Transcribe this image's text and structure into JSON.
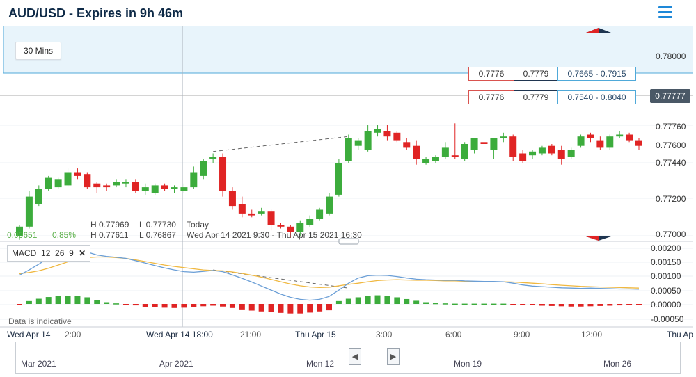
{
  "header": {
    "title": "AUD/USD - Expires in 9h 46m",
    "menu_icon": "hamburger-menu-icon"
  },
  "timeframe": "30 Mins",
  "quotes": [
    {
      "sell": "0.7776",
      "buy": "0.7779",
      "range": "0.7665 - 0.7915"
    },
    {
      "sell": "0.7776",
      "buy": "0.7779",
      "range": "0.7540 - 0.8040"
    }
  ],
  "last_price": "0.77777",
  "ohlc": {
    "today_h": "H 0.77969",
    "today_l": "L 0.77730",
    "today_label": "Today",
    "range_h": "H 0.77611",
    "range_l": "L 0.76867",
    "range_label": "Wed Apr 14 2021 9:30 - Thu Apr 15 2021 16:30",
    "change": "0.00651",
    "change_pct": "0.85%"
  },
  "macd": {
    "label": "MACD",
    "p1": "12",
    "p2": "26",
    "p3": "9"
  },
  "indicative": "Data is indicative",
  "navigator": {
    "labels": [
      "Mar 2021",
      "Apr 2021",
      "Mon 12",
      "Mon 19",
      "Mon 26"
    ]
  },
  "colors": {
    "up": "#3cac3c",
    "down": "#e02424",
    "macd_line": "#6a9ed6",
    "signal_line": "#f0b840",
    "accent": "#1e88d8"
  },
  "chart_data": {
    "type": "candlestick",
    "xlabels": [
      "Wed Apr 14",
      "2:00",
      "Wed Apr 14 18:00",
      "21:00",
      "Thu Apr 15",
      "3:00",
      "6:00",
      "9:00",
      "12:00",
      "Thu Ap"
    ],
    "price_axis": [
      "0.78000",
      "0.77760",
      "0.77600",
      "0.77440",
      "0.77200",
      "0.77000"
    ],
    "macd_axis": [
      "0.00200",
      "0.00150",
      "0.00100",
      "0.00050",
      "0.00000",
      "-0.00050"
    ],
    "ylim_price": [
      0.77,
      0.78
    ],
    "ylim_macd": [
      -0.0007,
      0.0021
    ],
    "candles": [
      [
        0.7701,
        0.7707,
        0.7699,
        0.7706
      ],
      [
        0.7706,
        0.7725,
        0.7705,
        0.7722
      ],
      [
        0.7718,
        0.7728,
        0.7717,
        0.7726
      ],
      [
        0.7726,
        0.7733,
        0.7725,
        0.7732
      ],
      [
        0.7727,
        0.7732,
        0.7726,
        0.7731
      ],
      [
        0.7728,
        0.7737,
        0.7727,
        0.7735
      ],
      [
        0.7735,
        0.7737,
        0.7731,
        0.7733
      ],
      [
        0.7734,
        0.7735,
        0.7726,
        0.7727
      ],
      [
        0.7729,
        0.773,
        0.7724,
        0.7727
      ],
      [
        0.7728,
        0.7729,
        0.7725,
        0.7727
      ],
      [
        0.7728,
        0.7731,
        0.7727,
        0.773
      ],
      [
        0.7729,
        0.7731,
        0.7727,
        0.773
      ],
      [
        0.773,
        0.7731,
        0.7724,
        0.7725
      ],
      [
        0.7725,
        0.7729,
        0.7723,
        0.7727
      ],
      [
        0.7724,
        0.7729,
        0.7723,
        0.7728
      ],
      [
        0.7728,
        0.7729,
        0.7725,
        0.7726
      ],
      [
        0.7726,
        0.7728,
        0.7724,
        0.7727
      ],
      [
        0.7725,
        0.7729,
        0.7724,
        0.7727
      ],
      [
        0.7727,
        0.7738,
        0.7726,
        0.7735
      ],
      [
        0.7733,
        0.7742,
        0.7731,
        0.7741
      ],
      [
        0.7742,
        0.7745,
        0.774,
        0.7743
      ],
      [
        0.7743,
        0.7745,
        0.7722,
        0.7725
      ],
      [
        0.7725,
        0.7727,
        0.7715,
        0.7717
      ],
      [
        0.7718,
        0.7722,
        0.7711,
        0.7713
      ],
      [
        0.7713,
        0.7715,
        0.7711,
        0.7712
      ],
      [
        0.7713,
        0.7716,
        0.7712,
        0.7714
      ],
      [
        0.7714,
        0.7715,
        0.7704,
        0.7707
      ],
      [
        0.7707,
        0.7708,
        0.7705,
        0.7706
      ],
      [
        0.7706,
        0.7707,
        0.77,
        0.7703
      ],
      [
        0.7703,
        0.7709,
        0.7701,
        0.7708
      ],
      [
        0.7707,
        0.7712,
        0.7706,
        0.771
      ],
      [
        0.771,
        0.7716,
        0.7709,
        0.7715
      ],
      [
        0.7713,
        0.7724,
        0.7712,
        0.7722
      ],
      [
        0.7723,
        0.7742,
        0.7722,
        0.774
      ],
      [
        0.7741,
        0.7755,
        0.774,
        0.7753
      ],
      [
        0.7749,
        0.7753,
        0.7747,
        0.7752
      ],
      [
        0.7747,
        0.776,
        0.7746,
        0.7757
      ],
      [
        0.7756,
        0.776,
        0.7754,
        0.7758
      ],
      [
        0.7757,
        0.776,
        0.7752,
        0.7754
      ],
      [
        0.7756,
        0.7757,
        0.7751,
        0.7752
      ],
      [
        0.7751,
        0.7753,
        0.7747,
        0.7748
      ],
      [
        0.7749,
        0.7752,
        0.7739,
        0.7742
      ],
      [
        0.774,
        0.7743,
        0.7739,
        0.7742
      ],
      [
        0.7741,
        0.7744,
        0.774,
        0.7743
      ],
      [
        0.7743,
        0.7751,
        0.7742,
        0.7748
      ],
      [
        0.7744,
        0.7761,
        0.7742,
        0.7743
      ],
      [
        0.7742,
        0.7751,
        0.7741,
        0.775
      ],
      [
        0.7747,
        0.7753,
        0.7745,
        0.7753
      ],
      [
        0.7751,
        0.7754,
        0.7748,
        0.775
      ],
      [
        0.7747,
        0.7753,
        0.7742,
        0.7753
      ],
      [
        0.7753,
        0.7756,
        0.7751,
        0.7754
      ],
      [
        0.7754,
        0.7755,
        0.7741,
        0.7743
      ],
      [
        0.7745,
        0.7747,
        0.774,
        0.7741
      ],
      [
        0.7744,
        0.7747,
        0.7742,
        0.7746
      ],
      [
        0.7745,
        0.7749,
        0.7744,
        0.7748
      ],
      [
        0.7749,
        0.775,
        0.7744,
        0.7745
      ],
      [
        0.7747,
        0.7749,
        0.7739,
        0.7742
      ],
      [
        0.7743,
        0.7748,
        0.7742,
        0.7747
      ],
      [
        0.7749,
        0.7755,
        0.7748,
        0.7754
      ],
      [
        0.7755,
        0.7756,
        0.7751,
        0.7753
      ],
      [
        0.7752,
        0.7754,
        0.7747,
        0.7748
      ],
      [
        0.7748,
        0.7755,
        0.7747,
        0.7754
      ],
      [
        0.7754,
        0.7757,
        0.7753,
        0.7755
      ],
      [
        0.7755,
        0.7756,
        0.7751,
        0.7752
      ],
      [
        0.7752,
        0.7753,
        0.7747,
        0.7749
      ]
    ],
    "histogram": [
      -4e-05,
      0.0001,
      0.00018,
      0.00024,
      0.00027,
      0.00028,
      0.00028,
      0.00023,
      0.00013,
      6e-05,
      2e-05,
      -1e-05,
      -5e-05,
      -0.0001,
      -0.00012,
      -0.00013,
      -0.00014,
      -0.00013,
      -0.00011,
      -8e-05,
      -6e-05,
      -9e-05,
      -0.00014,
      -0.00019,
      -0.00023,
      -0.00026,
      -0.00029,
      -0.00031,
      -0.00033,
      -0.00033,
      -0.0003,
      -0.00026,
      -0.00022,
      0.0001,
      0.00018,
      0.00023,
      0.00027,
      0.0003,
      0.00028,
      0.00023,
      0.00017,
      0.00011,
      6e-05,
      3e-05,
      2e-05,
      1e-05,
      1e-05,
      1e-05,
      1e-05,
      1e-05,
      1e-05,
      -1e-05,
      -2e-05,
      -4e-05,
      -6e-05,
      -7e-05,
      -8e-05,
      -9e-05,
      -9e-05,
      -8e-05,
      -7e-05,
      -6e-05,
      -5e-05,
      -4e-05,
      -3e-05
    ],
    "macd_line": [
      0.001,
      0.00118,
      0.00138,
      0.0016,
      0.00175,
      0.00182,
      0.00184,
      0.0018,
      0.0017,
      0.00165,
      0.00162,
      0.00158,
      0.0015,
      0.00142,
      0.00133,
      0.00125,
      0.00118,
      0.00112,
      0.0011,
      0.00113,
      0.00116,
      0.00112,
      0.00101,
      0.00089,
      0.00076,
      0.00062,
      0.00048,
      0.00034,
      0.00023,
      0.00016,
      0.00013,
      0.00016,
      0.00026,
      0.00048,
      0.00072,
      0.0009,
      0.00098,
      0.001,
      0.00099,
      0.00095,
      0.0009,
      0.00086,
      0.00084,
      0.00083,
      0.00082,
      0.00082,
      0.0008,
      0.00079,
      0.00078,
      0.00078,
      0.00077,
      0.00072,
      0.00066,
      0.00062,
      0.0006,
      0.00058,
      0.00056,
      0.00055,
      0.00054,
      0.00055,
      0.00054,
      0.00053,
      0.00052,
      0.00052,
      0.00051
    ],
    "signal_line": [
      0.00105,
      0.00109,
      0.00115,
      0.00124,
      0.00135,
      0.00146,
      0.00155,
      0.00161,
      0.00163,
      0.00163,
      0.00161,
      0.00158,
      0.00153,
      0.00147,
      0.00141,
      0.00135,
      0.0013,
      0.00126,
      0.00122,
      0.00118,
      0.00116,
      0.00115,
      0.00111,
      0.00106,
      0.001,
      0.00093,
      0.00085,
      0.00077,
      0.00069,
      0.00063,
      0.00059,
      0.00057,
      0.00058,
      0.00063,
      0.00068,
      0.00072,
      0.00077,
      0.00081,
      0.00083,
      0.00084,
      0.00083,
      0.00082,
      0.00082,
      0.00081,
      0.0008,
      0.0008,
      0.00079,
      0.00078,
      0.00078,
      0.00077,
      0.00077,
      0.00076,
      0.00074,
      0.00072,
      0.0007,
      0.00067,
      0.00065,
      0.00063,
      0.00061,
      0.0006,
      0.00059,
      0.00058,
      0.00057,
      0.00056,
      0.00055
    ]
  }
}
